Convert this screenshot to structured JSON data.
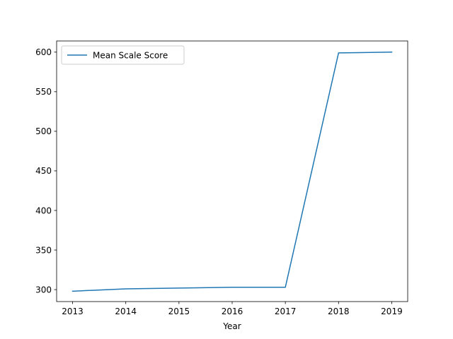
{
  "chart_data": {
    "type": "line",
    "title": "",
    "xlabel": "Year",
    "ylabel": "",
    "categories": [
      "2013",
      "2014",
      "2015",
      "2016",
      "2017",
      "2018",
      "2019"
    ],
    "x": [
      2013,
      2014,
      2015,
      2016,
      2017,
      2018,
      2019
    ],
    "series": [
      {
        "name": "Mean Scale Score",
        "color": "#1f77b4",
        "values": [
          298,
          301,
          302,
          303,
          303,
          599,
          600
        ]
      }
    ],
    "yticks": [
      300,
      350,
      400,
      450,
      500,
      550,
      600
    ],
    "xlim": [
      2012.7,
      2019.3
    ],
    "ylim": [
      284.9,
      614.1
    ],
    "grid": false,
    "legend_position": "upper left"
  }
}
